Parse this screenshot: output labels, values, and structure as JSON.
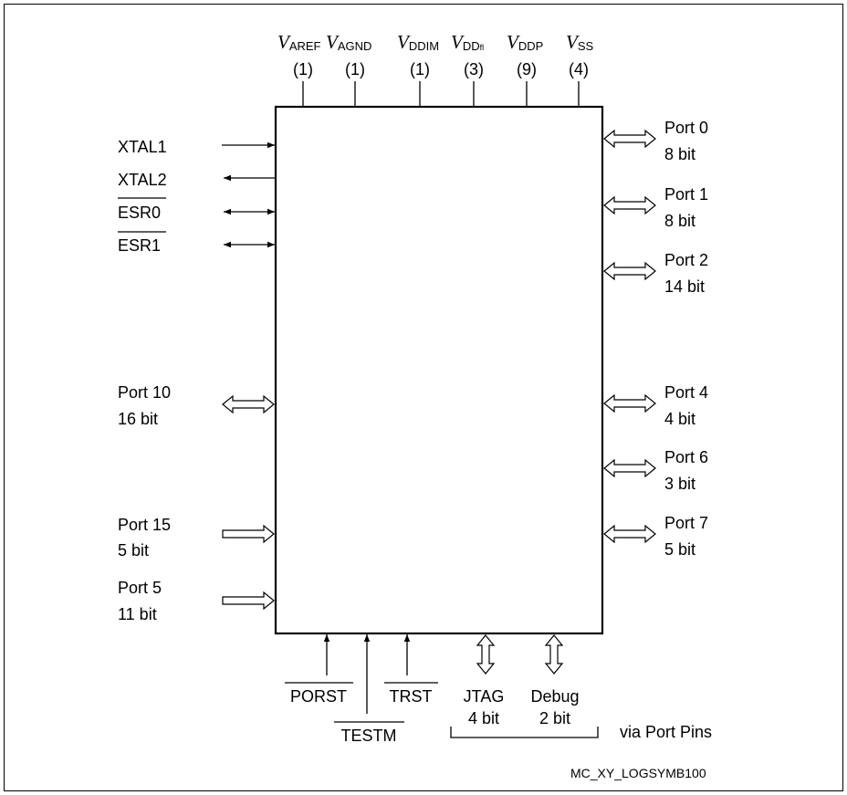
{
  "supply_pins": [
    {
      "symbol": "V",
      "subscript": "AREF",
      "count": "(1)"
    },
    {
      "symbol": "V",
      "subscript": "AGND",
      "count": "(1)"
    },
    {
      "symbol": "V",
      "subscript": "DDIM",
      "count": "(1)"
    },
    {
      "symbol": "V",
      "subscript": "DD",
      "subscript2": "fl",
      "count": "(3)"
    },
    {
      "symbol": "V",
      "subscript": "DDP",
      "count": "(9)"
    },
    {
      "symbol": "V",
      "subscript": "SS",
      "count": "(4)"
    }
  ],
  "left_signals": {
    "xtal1": "XTAL1",
    "xtal2": "XTAL2",
    "esr0": "ESR0",
    "esr1": "ESR1"
  },
  "left_ports": [
    {
      "name": "Port 10",
      "width": "16 bit"
    },
    {
      "name": "Port 15",
      "width": "5 bit"
    },
    {
      "name": "Port 5",
      "width": "11 bit"
    }
  ],
  "right_ports": [
    {
      "name": "Port 0",
      "width": "8 bit"
    },
    {
      "name": "Port 1",
      "width": "8 bit"
    },
    {
      "name": "Port 2",
      "width": "14 bit"
    },
    {
      "name": "Port 4",
      "width": "4 bit"
    },
    {
      "name": "Port 6",
      "width": "3 bit"
    },
    {
      "name": "Port 7",
      "width": "5 bit"
    }
  ],
  "bottom_signals": {
    "porst": "PORST",
    "testm": "TESTM",
    "trst": "TRST"
  },
  "bottom_ports": [
    {
      "name": "JTAG",
      "width": "4 bit"
    },
    {
      "name": "Debug",
      "width": "2 bit"
    }
  ],
  "via_port_pins": "via Port Pins",
  "figure_id": "MC_XY_LOGSYMB100"
}
